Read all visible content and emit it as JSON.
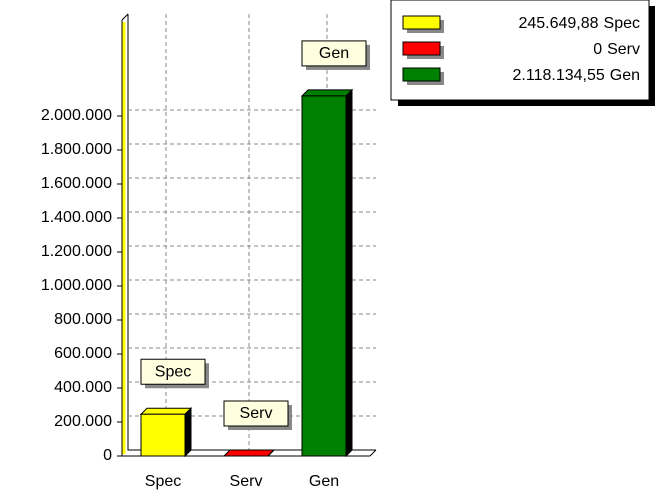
{
  "chart_data": {
    "type": "bar3d",
    "categories": [
      "Spec",
      "Serv",
      "Gen"
    ],
    "values": [
      245649.88,
      0,
      2118134.55
    ],
    "value_labels": [
      "245.649,88",
      "0",
      "2.118.134,55"
    ],
    "colors": [
      "#ffff00",
      "#ff0000",
      "#008000"
    ],
    "ylim": [
      0,
      2600000
    ],
    "yticks": [
      0,
      {
        "value": 200000,
        "label": "200.000"
      },
      {
        "value": 400000,
        "label": "400.000"
      },
      {
        "value": 600000,
        "label": "600.000"
      },
      {
        "value": 800000,
        "label": "800.000"
      },
      {
        "value": 1000000,
        "label": "1.000.000"
      },
      {
        "value": 1200000,
        "label": "1.200.000"
      },
      {
        "value": 1400000,
        "label": "1.400.000"
      },
      {
        "value": 1600000,
        "label": "1.600.000"
      },
      {
        "value": 1800000,
        "label": "1.800.000"
      },
      {
        "value": 2000000,
        "label": "2.000.000"
      }
    ],
    "grid": true,
    "legend": "top-right"
  }
}
